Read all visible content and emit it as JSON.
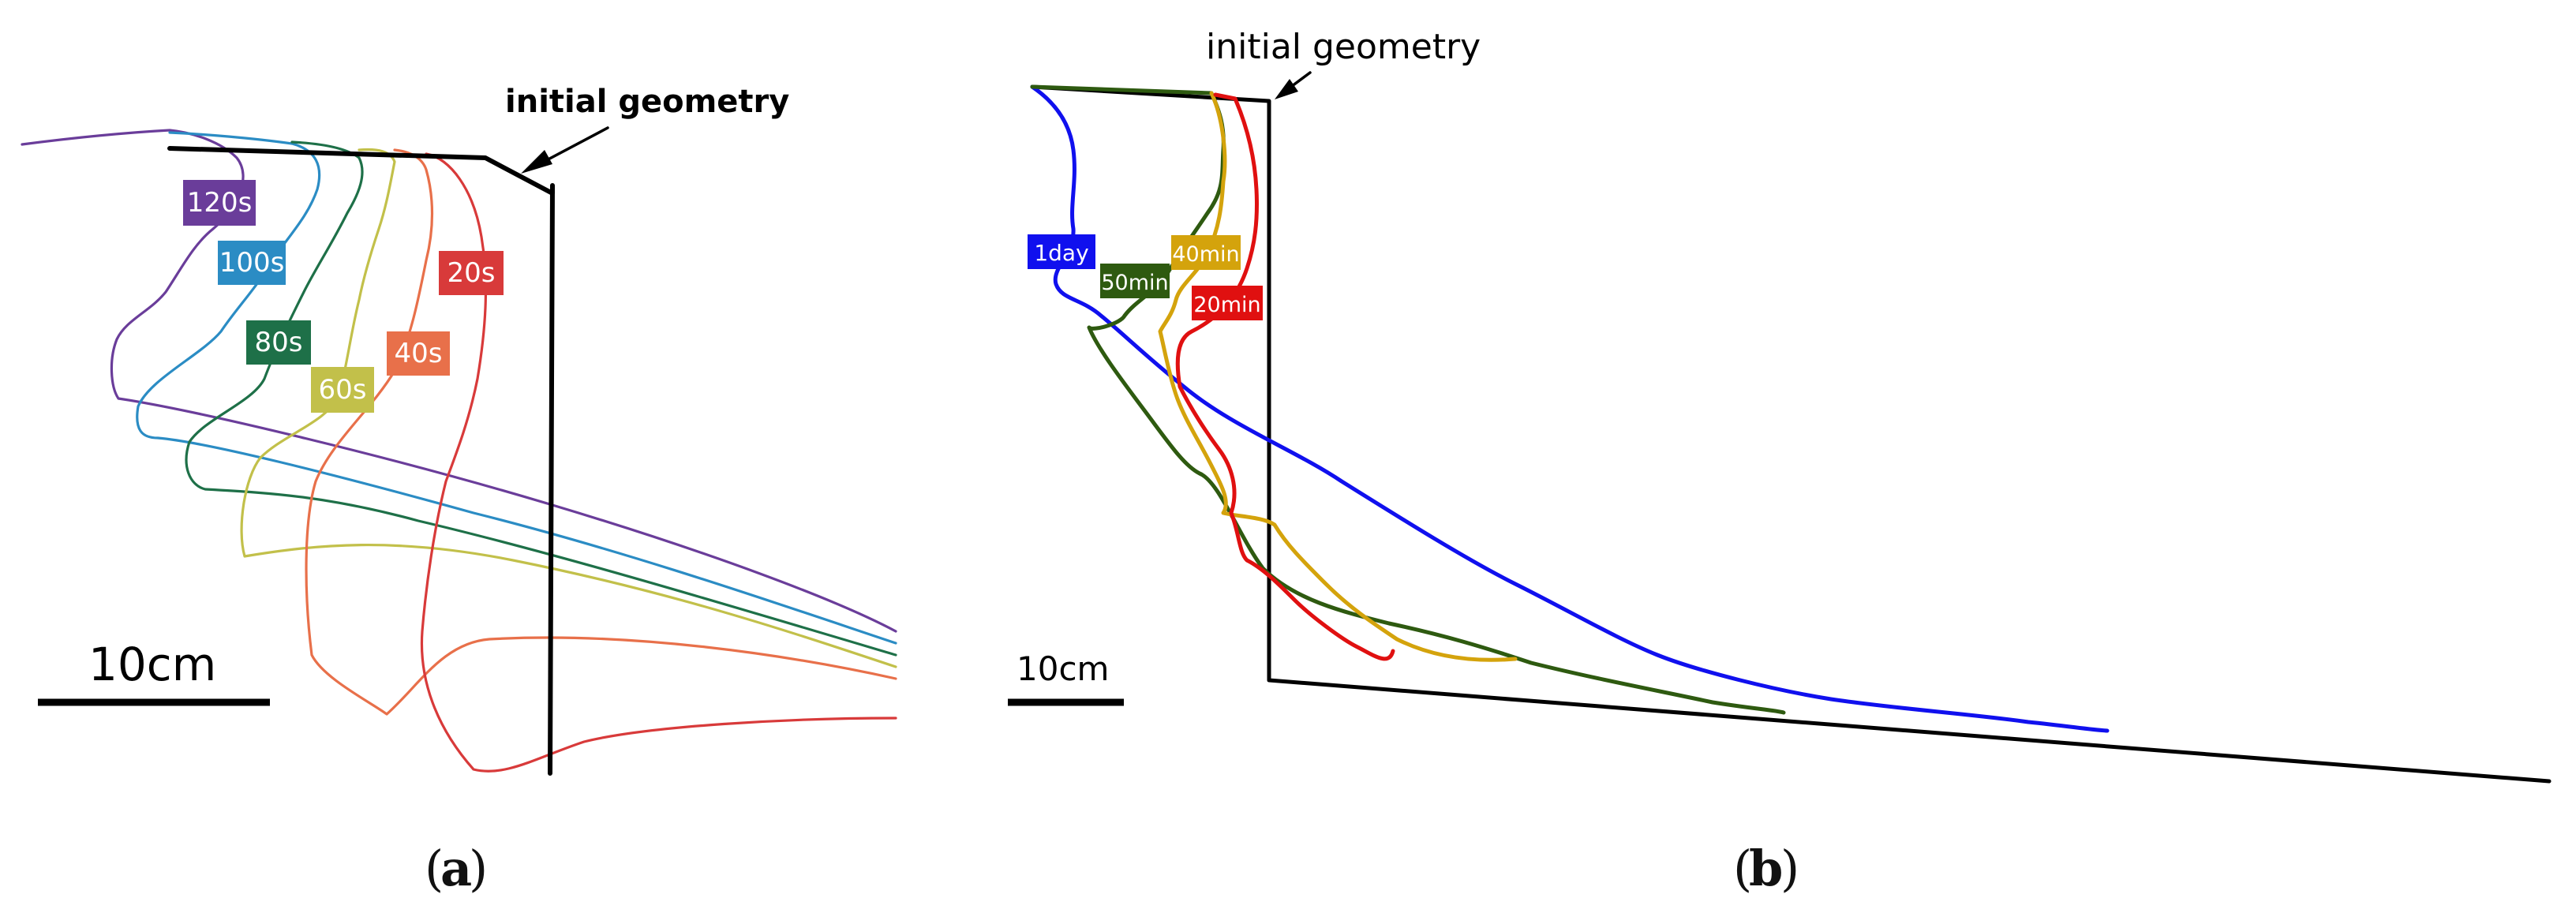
{
  "panel_a": {
    "annotation": "initial geometry",
    "scale_label": "10cm",
    "caption_letter": "a",
    "profiles": [
      {
        "label": "120s",
        "color": "#6a3d9a"
      },
      {
        "label": "100s",
        "color": "#2b8cc4"
      },
      {
        "label": "80s",
        "color": "#1e7048"
      },
      {
        "label": "60s",
        "color": "#c2c04a"
      },
      {
        "label": "40s",
        "color": "#e8704a"
      },
      {
        "label": "20s",
        "color": "#d83a3a"
      }
    ]
  },
  "panel_b": {
    "annotation": "initial geometry",
    "scale_label": "10cm",
    "caption_letter": "b",
    "profiles": [
      {
        "label": "1day",
        "color": "#1010ee"
      },
      {
        "label": "50min",
        "color": "#2e5a10"
      },
      {
        "label": "40min",
        "color": "#d4a30c"
      },
      {
        "label": "20min",
        "color": "#e01010"
      }
    ]
  }
}
